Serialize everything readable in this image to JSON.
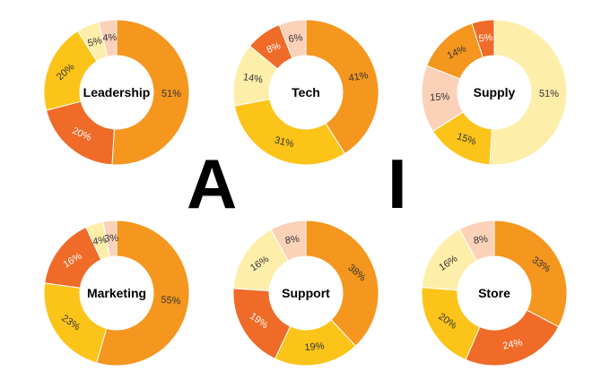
{
  "big_letters": {
    "left": "A",
    "right": "I"
  },
  "colors": {
    "dark_orange": "#f06a28",
    "orange": "#f5961e",
    "yellow": "#fcc419",
    "light_yellow": "#fdeeaa",
    "peach": "#fbd2b8",
    "red": "#ea5028",
    "label_dark": "#ffffff",
    "label_light": "#333333"
  },
  "chart_data": [
    {
      "type": "pie",
      "title": "Leadership",
      "slices": [
        {
          "value": 51,
          "label": "51%",
          "color": "#f5961e"
        },
        {
          "value": 20,
          "label": "20%",
          "color": "#f06a28"
        },
        {
          "value": 20,
          "label": "20%",
          "color": "#fcc419"
        },
        {
          "value": 5,
          "label": "5%",
          "color": "#fdeeaa"
        },
        {
          "value": 4,
          "label": "4%",
          "color": "#fbd2b8"
        }
      ]
    },
    {
      "type": "pie",
      "title": "Tech",
      "slices": [
        {
          "value": 41,
          "label": "41%",
          "color": "#f5961e"
        },
        {
          "value": 31,
          "label": "31%",
          "color": "#fcc419"
        },
        {
          "value": 14,
          "label": "14%",
          "color": "#fdeeaa"
        },
        {
          "value": 8,
          "label": "8%",
          "color": "#f06a28"
        },
        {
          "value": 6,
          "label": "6%",
          "color": "#fbd2b8"
        }
      ]
    },
    {
      "type": "pie",
      "title": "Supply",
      "slices": [
        {
          "value": 51,
          "label": "51%",
          "color": "#fdeeaa"
        },
        {
          "value": 15,
          "label": "15%",
          "color": "#fcc419"
        },
        {
          "value": 15,
          "label": "15%",
          "color": "#fbd2b8"
        },
        {
          "value": 14,
          "label": "14%",
          "color": "#f5961e"
        },
        {
          "value": 5,
          "label": "5%",
          "color": "#f06a28"
        }
      ]
    },
    {
      "type": "pie",
      "title": "Marketing",
      "slices": [
        {
          "value": 55,
          "label": "55%",
          "color": "#f5961e"
        },
        {
          "value": 23,
          "label": "23%",
          "color": "#fcc419"
        },
        {
          "value": 16,
          "label": "16%",
          "color": "#f06a28"
        },
        {
          "value": 4,
          "label": "4%",
          "color": "#fdeeaa"
        },
        {
          "value": 3,
          "label": "3%",
          "color": "#fbd2b8"
        }
      ]
    },
    {
      "type": "pie",
      "title": "Support",
      "slices": [
        {
          "value": 38,
          "label": "38%",
          "color": "#f5961e"
        },
        {
          "value": 19,
          "label": "19%",
          "color": "#fcc419"
        },
        {
          "value": 19,
          "label": "19%",
          "color": "#f06a28"
        },
        {
          "value": 16,
          "label": "16%",
          "color": "#fdeeaa"
        },
        {
          "value": 8,
          "label": "8%",
          "color": "#fbd2b8"
        }
      ]
    },
    {
      "type": "pie",
      "title": "Store",
      "slices": [
        {
          "value": 33,
          "label": "33%",
          "color": "#f5961e"
        },
        {
          "value": 24,
          "label": "24%",
          "color": "#f06a28"
        },
        {
          "value": 20,
          "label": "20%",
          "color": "#fcc419"
        },
        {
          "value": 16,
          "label": "16%",
          "color": "#fdeeaa"
        },
        {
          "value": 8,
          "label": "8%",
          "color": "#fbd2b8"
        }
      ]
    }
  ]
}
